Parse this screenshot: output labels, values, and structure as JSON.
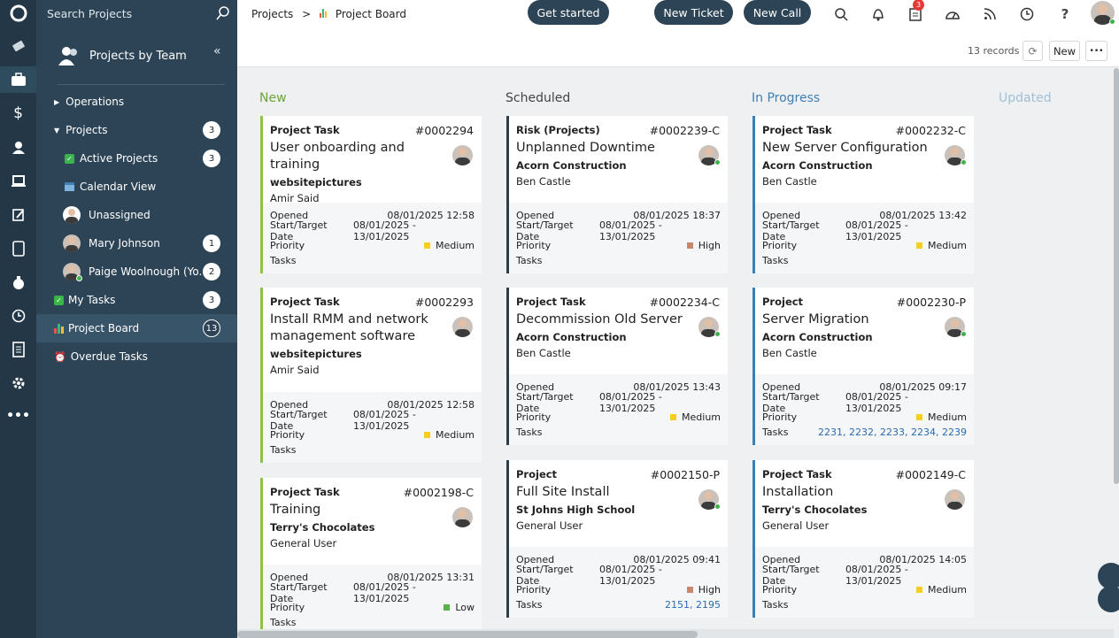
{
  "colors": {
    "rail": "#233746",
    "sidebar": "#2c4456",
    "accent_new": "#8bc34a",
    "accent_sched": "#2c3e4c",
    "accent_ip": "#3d7fb3",
    "priority_medium": "#f5cf1f",
    "priority_high": "#c8896b",
    "priority_low": "#58b24a"
  },
  "search": {
    "placeholder": "Search Projects"
  },
  "sidebar": {
    "title": "Projects by Team",
    "items": [
      {
        "label": "Operations",
        "badge": ""
      },
      {
        "label": "Projects",
        "badge": "3"
      },
      {
        "label": "Active Projects",
        "badge": "3"
      },
      {
        "label": "Calendar View",
        "badge": ""
      },
      {
        "label": "Unassigned",
        "badge": ""
      },
      {
        "label": "Mary Johnson",
        "badge": "1"
      },
      {
        "label": "Paige Woolnough (Yo...",
        "badge": "2"
      },
      {
        "label": "My Tasks",
        "badge": "3"
      },
      {
        "label": "Project Board",
        "badge": "13"
      },
      {
        "label": "Overdue Tasks",
        "badge": ""
      }
    ]
  },
  "header": {
    "breadcrumb_root": "Projects",
    "breadcrumb_sep": ">",
    "breadcrumb_current": "Project Board",
    "get_started": "Get started",
    "new_ticket": "New Ticket",
    "new_call": "New Call",
    "notification_count": "3"
  },
  "toolbar": {
    "records": "13 records",
    "new_label": "New",
    "more_label": "•••"
  },
  "labels": {
    "opened": "Opened",
    "start_target": "Start/Target Date",
    "priority": "Priority",
    "tasks": "Tasks"
  },
  "columns": [
    {
      "title": "New",
      "color": "#6aa535"
    },
    {
      "title": "Scheduled",
      "color": "#444"
    },
    {
      "title": "In Progress",
      "color": "#3d7fb3"
    },
    {
      "title": "Updated",
      "color": "#9fc0d8"
    }
  ],
  "cards": [
    {
      "type": "Project Task",
      "num": "#0002294",
      "title": "User onboarding and training",
      "customer": "websitepictures",
      "user": "Amir Said",
      "opened": "08/01/2025 12:58",
      "dates": "08/01/2025 - 13/01/2025",
      "priority": "Medium",
      "tasks": ""
    },
    {
      "type": "Project Task",
      "num": "#0002293",
      "title": "Install RMM and network management software",
      "customer": "websitepictures",
      "user": "Amir Said",
      "opened": "08/01/2025 12:58",
      "dates": "08/01/2025 - 13/01/2025",
      "priority": "Medium",
      "tasks": ""
    },
    {
      "type": "Project Task",
      "num": "#0002198-C",
      "title": "Training",
      "customer": "Terry's Chocolates",
      "user": "General User",
      "opened": "08/01/2025 13:31",
      "dates": "08/01/2025 - 13/01/2025",
      "priority": "Low",
      "tasks": ""
    },
    {
      "type": "Risk (Projects)",
      "num": "#0002239-C",
      "title": "Unplanned Downtime",
      "customer": "Acorn Construction",
      "user": "Ben Castle",
      "opened": "08/01/2025 18:37",
      "dates": "08/01/2025 - 13/01/2025",
      "priority": "High",
      "tasks": ""
    },
    {
      "type": "Project Task",
      "num": "#0002234-C",
      "title": "Decommission Old Server",
      "customer": "Acorn Construction",
      "user": "Ben Castle",
      "opened": "08/01/2025 13:43",
      "dates": "08/01/2025 - 13/01/2025",
      "priority": "Medium",
      "tasks": ""
    },
    {
      "type": "Project",
      "num": "#0002150-P",
      "title": "Full Site Install",
      "customer": "St Johns High School",
      "user": "General User",
      "opened": "08/01/2025 09:41",
      "dates": "08/01/2025 - 13/01/2025",
      "priority": "High",
      "tasks": "2151, 2195"
    },
    {
      "type": "Project Task",
      "num": "#0002232-C",
      "title": "New Server Configuration",
      "customer": "Acorn Construction",
      "user": "Ben Castle",
      "opened": "08/01/2025 13:42",
      "dates": "08/01/2025 - 13/01/2025",
      "priority": "Medium",
      "tasks": ""
    },
    {
      "type": "Project",
      "num": "#0002230-P",
      "title": "Server Migration",
      "customer": "Acorn Construction",
      "user": "Ben Castle",
      "opened": "08/01/2025 09:17",
      "dates": "08/01/2025 - 13/01/2025",
      "priority": "Medium",
      "tasks": "2231, 2232, 2233, 2234, 2239"
    },
    {
      "type": "Project Task",
      "num": "#0002149-C",
      "title": "Installation",
      "customer": "Terry's Chocolates",
      "user": "General User",
      "opened": "08/01/2025 14:05",
      "dates": "08/01/2025 - 13/01/2025",
      "priority": "Medium",
      "tasks": ""
    }
  ]
}
